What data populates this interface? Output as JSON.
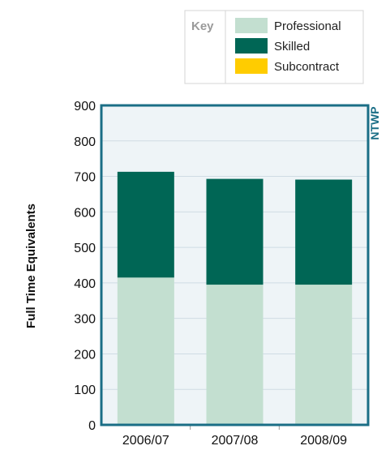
{
  "chart_data": {
    "type": "bar",
    "stacked": true,
    "categories": [
      "2006/07",
      "2007/08",
      "2008/09"
    ],
    "series": [
      {
        "name": "Professional",
        "values": [
          415,
          395,
          395
        ]
      },
      {
        "name": "Skilled",
        "values": [
          298,
          298,
          296
        ]
      },
      {
        "name": "Subcontract",
        "values": [
          0,
          0,
          0
        ]
      }
    ],
    "ylabel": "Full Time Equivalents",
    "ylim": [
      0,
      900
    ],
    "yticks": [
      0,
      100,
      200,
      300,
      400,
      500,
      600,
      700,
      800,
      900
    ],
    "grid": true,
    "legend_title": "Key",
    "legend_position": "top-right",
    "side_label": "NTWP"
  },
  "colors": {
    "professional": "#c3dfd0",
    "skilled": "#006655",
    "subcontract": "#ffcc00",
    "frame": "#1a6e86",
    "plot_bg": "#eef4f7",
    "grid": "#cfdce4"
  }
}
